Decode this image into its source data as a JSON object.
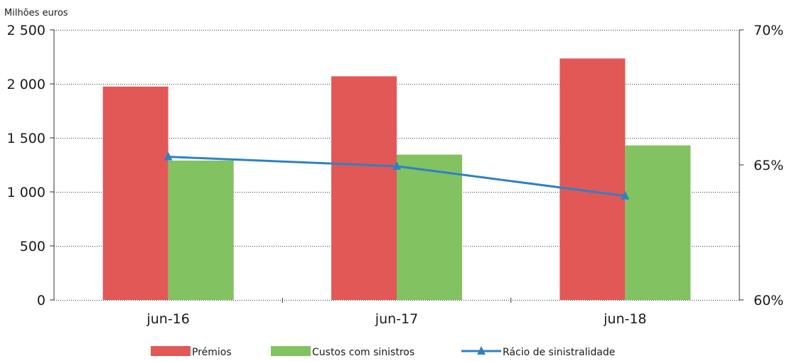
{
  "chart_data": {
    "type": "bar",
    "y_unit_label": "Milhões euros",
    "categories": [
      "jun-16",
      "jun-17",
      "jun-18"
    ],
    "series": [
      {
        "name": "Prémios",
        "type": "bar",
        "axis": "left",
        "color": "#e15857",
        "values": [
          1975,
          2070,
          2235
        ]
      },
      {
        "name": "Custos com sinistros",
        "type": "bar",
        "axis": "left",
        "color": "#82c260",
        "values": [
          1290,
          1345,
          1430
        ]
      },
      {
        "name": "Rácio de sinistralidade",
        "type": "line",
        "axis": "right",
        "marker": "triangle",
        "color": "#2f81c4",
        "values": [
          65.3,
          64.95,
          63.85
        ]
      }
    ],
    "y_left": {
      "ylim": [
        0,
        2500
      ],
      "ticks": [
        0,
        500,
        1000,
        1500,
        2000,
        2500
      ],
      "tick_labels": [
        "0",
        "500",
        "1 000",
        "1 500",
        "2 000",
        "2 500"
      ]
    },
    "y_right": {
      "ylim": [
        60,
        70
      ],
      "ticks": [
        60,
        65,
        70
      ],
      "tick_labels": [
        "60%",
        "65%",
        "70%"
      ]
    },
    "grid": "horizontal-dotted",
    "legend_position": "bottom"
  }
}
